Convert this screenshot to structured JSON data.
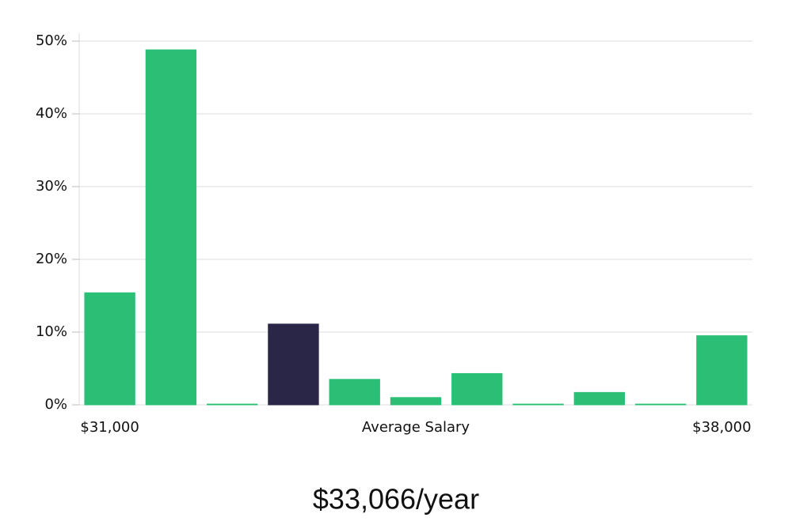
{
  "chart_data": {
    "type": "bar",
    "categories": [
      "$31,000",
      null,
      null,
      null,
      null,
      null,
      null,
      null,
      null,
      null,
      "$38,000"
    ],
    "values": [
      15.4,
      48.8,
      0.1,
      11.1,
      3.5,
      1.0,
      4.3,
      0.1,
      1.7,
      0.1,
      9.5
    ],
    "colors": [
      "#2bbf76",
      "#2bbf76",
      "#2bbf76",
      "#2a2647",
      "#2bbf76",
      "#2bbf76",
      "#2bbf76",
      "#2bbf76",
      "#2bbf76",
      "#2bbf76",
      "#2bbf76"
    ],
    "xlabel": "Average Salary",
    "annotation": "$33,066/year",
    "ylim": [
      0,
      50
    ],
    "yticks": [
      {
        "value": 0,
        "label": "0%"
      },
      {
        "value": 10,
        "label": "10%"
      },
      {
        "value": 20,
        "label": "20%"
      },
      {
        "value": 30,
        "label": "30%"
      },
      {
        "value": 40,
        "label": "40%"
      },
      {
        "value": 50,
        "label": "50%"
      }
    ],
    "grid": true
  }
}
